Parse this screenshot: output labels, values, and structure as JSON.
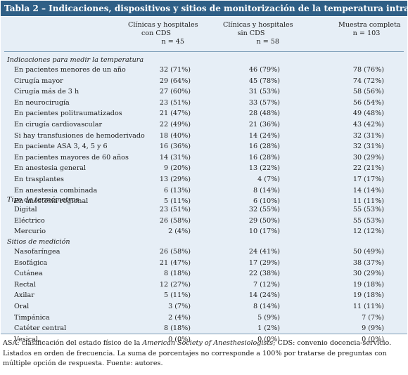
{
  "title": "Tabla 2 – Indicaciones, dispositivos y sitios de monitorización de la temperatura intraoperatoria",
  "columns": [
    {
      "line1": "Clínicas y hospitales",
      "line2": "con CDS",
      "n": "n = 45"
    },
    {
      "line1": "Clínicas y hospitales",
      "line2": "sin CDS",
      "n": "n = 58"
    },
    {
      "line1": "Muestra completa",
      "line2": "",
      "n": "n = 103"
    }
  ],
  "sections": [
    {
      "heading": "Indicaciones para medir la temperatura",
      "rows": [
        {
          "label": "En pacientes menores de un año",
          "v": [
            "32 (71%)",
            "46 (79%)",
            "78 (76%)"
          ]
        },
        {
          "label": "Cirugía mayor",
          "v": [
            "29 (64%)",
            "45 (78%)",
            "74 (72%)"
          ]
        },
        {
          "label": "Cirugía más de 3 h",
          "v": [
            "27 (60%)",
            "31 (53%)",
            "58 (56%)"
          ]
        },
        {
          "label": "En neurocirugía",
          "v": [
            "23 (51%)",
            "33 (57%)",
            "56 (54%)"
          ]
        },
        {
          "label": "En pacientes politraumatizados",
          "v": [
            "21 (47%)",
            "28 (48%)",
            "49 (48%)"
          ]
        },
        {
          "label": "En cirugía cardiovascular",
          "v": [
            "22 (49%)",
            "21 (36%)",
            "43 (42%)"
          ]
        },
        {
          "label": "Si hay transfusiones de hemoderivado",
          "v": [
            "18 (40%)",
            "14 (24%)",
            "32 (31%)"
          ]
        },
        {
          "label": "En paciente ASA 3, 4, 5 y 6",
          "v": [
            "16 (36%)",
            "16 (28%)",
            "32 (31%)"
          ]
        },
        {
          "label": "En pacientes mayores de 60 años",
          "v": [
            "14 (31%)",
            "16 (28%)",
            "30 (29%)"
          ]
        },
        {
          "label": "En anestesia general",
          "v": [
            "9 (20%)",
            "13 (22%)",
            "22 (21%)"
          ]
        },
        {
          "label": "En trasplantes",
          "v": [
            "13 (29%)",
            "4 (7%)",
            "17 (17%)"
          ]
        },
        {
          "label": "En anestesia combinada",
          "v": [
            "6 (13%)",
            "8 (14%)",
            "14 (14%)"
          ]
        },
        {
          "label": "En anestesia regional",
          "v": [
            "5 (11%)",
            "6 (10%)",
            "11 (11%)"
          ]
        }
      ]
    },
    {
      "heading": "Tipo de termómetros",
      "rows": [
        {
          "label": "Digital",
          "v": [
            "23 (51%)",
            "32 (55%)",
            "55 (53%)"
          ]
        },
        {
          "label": "Eléctrico",
          "v": [
            "26 (58%)",
            "29 (50%)",
            "55 (53%)"
          ]
        },
        {
          "label": "Mercurio",
          "v": [
            "2 (4%)",
            "10 (17%)",
            "12 (12%)"
          ]
        }
      ]
    },
    {
      "heading": "Sitios de medición",
      "rows": [
        {
          "label": "Nasofaríngea",
          "v": [
            "26 (58%)",
            "24 (41%)",
            "50 (49%)"
          ]
        },
        {
          "label": "Esofágica",
          "v": [
            "21 (47%)",
            "17 (29%)",
            "38 (37%)"
          ]
        },
        {
          "label": "Cutánea",
          "v": [
            "8 (18%)",
            "22 (38%)",
            "30 (29%)"
          ]
        },
        {
          "label": "Rectal",
          "v": [
            "12 (27%)",
            "7 (12%)",
            "19 (18%)"
          ]
        },
        {
          "label": "Axilar",
          "v": [
            "5 (11%)",
            "14 (24%)",
            "19 (18%)"
          ]
        },
        {
          "label": "Oral",
          "v": [
            "3 (7%)",
            "8 (14%)",
            "11 (11%)"
          ]
        },
        {
          "label": "Timpánica",
          "v": [
            "2 (4%)",
            "5 (9%)",
            "7 (7%)"
          ]
        },
        {
          "label": "Catéter central",
          "v": [
            "8 (18%)",
            "1 (2%)",
            "9 (9%)"
          ]
        },
        {
          "label": "Vesical",
          "v": [
            "0 (0%)",
            "0 (0%)",
            "0 (0%)"
          ]
        }
      ]
    }
  ],
  "footnotes": {
    "line1_pre": "ASA: clasificación del estado físico de la ",
    "line1_em": "American Society of Anesthesiologists",
    "line1_post": "; CDS: convenio docencia-servicio.",
    "line2": "Listados en orden de frecuencia. La suma de porcentajes no corresponde a 100% por tratarse de preguntas con múltiple opción de respuesta.  Fuente: autores."
  }
}
